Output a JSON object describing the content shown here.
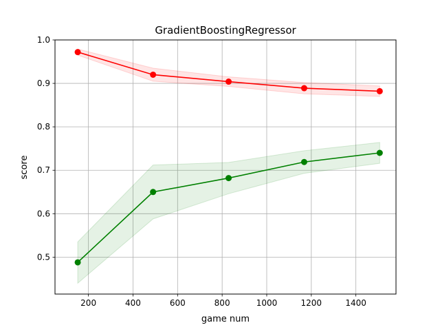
{
  "chart_data": {
    "type": "line",
    "title": "GradientBoostingRegressor",
    "xlabel": "game num",
    "ylabel": "score",
    "xlim": [
      50,
      1580
    ],
    "ylim": [
      0.415,
      1.0
    ],
    "xticks": [
      200,
      400,
      600,
      800,
      1000,
      1200,
      1400
    ],
    "yticks": [
      0.5,
      0.6,
      0.7,
      0.8,
      0.9,
      1.0
    ],
    "xtick_labels": [
      "200",
      "400",
      "600",
      "800",
      "1000",
      "1200",
      "1400"
    ],
    "ytick_labels": [
      "0.5",
      "0.6",
      "0.7",
      "0.8",
      "0.9",
      "1.0"
    ],
    "grid": true,
    "legend": "none",
    "x": [
      152,
      490,
      829,
      1168,
      1507
    ],
    "series": [
      {
        "color": "#ff0000",
        "band_color": "#ff0000",
        "values": [
          0.972,
          0.92,
          0.904,
          0.889,
          0.882
        ],
        "lower": [
          0.965,
          0.905,
          0.893,
          0.876,
          0.87
        ],
        "upper": [
          0.979,
          0.935,
          0.915,
          0.902,
          0.894
        ]
      },
      {
        "color": "#008000",
        "band_color": "#008000",
        "values": [
          0.488,
          0.65,
          0.682,
          0.719,
          0.74
        ],
        "lower": [
          0.44,
          0.588,
          0.646,
          0.693,
          0.716
        ],
        "upper": [
          0.535,
          0.712,
          0.718,
          0.745,
          0.764
        ]
      }
    ]
  }
}
